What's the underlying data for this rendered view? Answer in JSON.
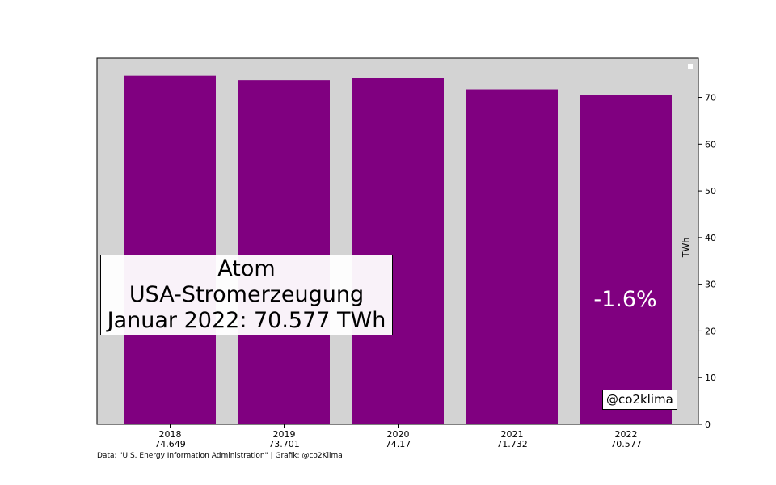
{
  "chart_data": {
    "type": "bar",
    "categories": [
      "2018",
      "2019",
      "2020",
      "2021",
      "2022"
    ],
    "category_value_labels": [
      "74.649",
      "73.701",
      "74.17",
      "71.732",
      "70.577"
    ],
    "values": [
      74.649,
      73.701,
      74.17,
      71.732,
      70.577
    ],
    "title_lines": [
      "Atom",
      "USA-Stromerzeugung",
      "Januar 2022: 70.577 TWh"
    ],
    "ylabel": "TWh",
    "ylim": [
      0,
      78.4
    ],
    "yticks": [
      0,
      10,
      20,
      30,
      40,
      50,
      60,
      70
    ],
    "y_axis_side": "right",
    "grid": false,
    "legend": "top-right",
    "annotation": "-1.6%",
    "watermark": "@co2klima",
    "bar_color": "#800080",
    "plot_background": "#d3d3d3"
  },
  "footer": {
    "source": "Data: \"U.S. Energy Information Administration\" | Grafik: @co2Klima"
  }
}
